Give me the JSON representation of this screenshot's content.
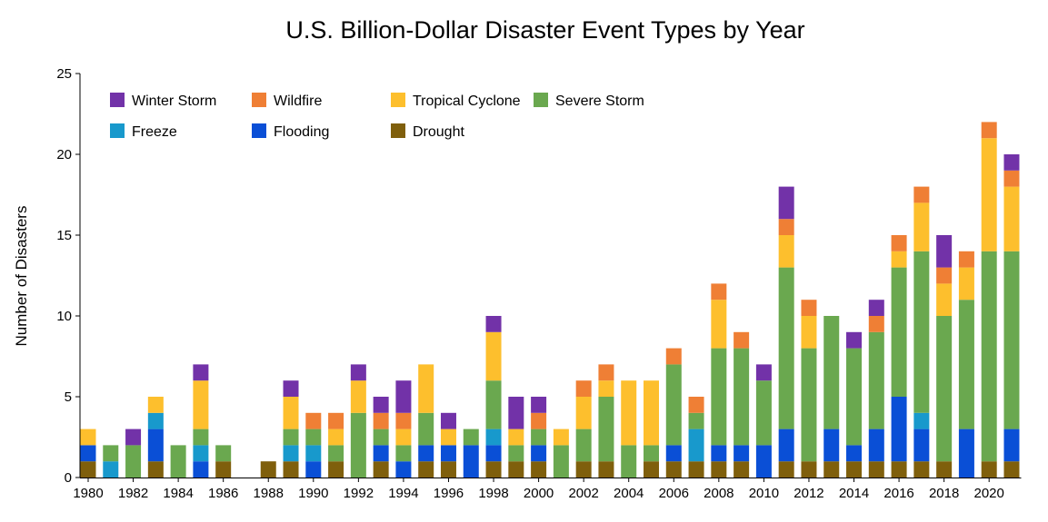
{
  "chart_data": {
    "type": "bar",
    "stacked": true,
    "title": "U.S. Billion-Dollar Disaster Event Types by Year",
    "xlabel": "",
    "ylabel": "Number of Disasters",
    "ylim": [
      0,
      25
    ],
    "yticks": [
      0,
      5,
      10,
      15,
      20,
      25
    ],
    "xtick_labels": [
      "1980",
      "1982",
      "1984",
      "1986",
      "1988",
      "1990",
      "1992",
      "1994",
      "1996",
      "1998",
      "2000",
      "2002",
      "2004",
      "2006",
      "2008",
      "2010",
      "2012",
      "2014",
      "2016",
      "2018",
      "2020"
    ],
    "categories": [
      "1980",
      "1981",
      "1982",
      "1983",
      "1984",
      "1985",
      "1986",
      "1987",
      "1988",
      "1989",
      "1990",
      "1991",
      "1992",
      "1993",
      "1994",
      "1995",
      "1996",
      "1997",
      "1998",
      "1999",
      "2000",
      "2001",
      "2002",
      "2003",
      "2004",
      "2005",
      "2006",
      "2007",
      "2008",
      "2009",
      "2010",
      "2011",
      "2012",
      "2013",
      "2014",
      "2015",
      "2016",
      "2017",
      "2018",
      "2019",
      "2020",
      "2021"
    ],
    "series": [
      {
        "name": "Drought",
        "color": "#7f5f0c",
        "values": [
          1,
          0,
          0,
          1,
          0,
          0,
          1,
          0,
          1,
          1,
          0,
          1,
          0,
          1,
          0,
          1,
          1,
          0,
          1,
          1,
          1,
          0,
          1,
          1,
          0,
          1,
          1,
          1,
          1,
          1,
          0,
          1,
          1,
          1,
          1,
          1,
          1,
          1,
          1,
          0,
          1,
          1
        ]
      },
      {
        "name": "Flooding",
        "color": "#0a4fd6",
        "values": [
          1,
          0,
          0,
          2,
          0,
          1,
          0,
          0,
          0,
          0,
          1,
          0,
          0,
          1,
          1,
          1,
          1,
          2,
          1,
          0,
          1,
          0,
          0,
          0,
          0,
          0,
          1,
          0,
          1,
          1,
          2,
          2,
          0,
          2,
          1,
          2,
          4,
          2,
          0,
          3,
          0,
          2
        ]
      },
      {
        "name": "Freeze",
        "color": "#1899cc",
        "values": [
          0,
          1,
          0,
          1,
          0,
          1,
          0,
          0,
          0,
          1,
          1,
          0,
          0,
          0,
          0,
          0,
          0,
          0,
          1,
          0,
          0,
          0,
          0,
          0,
          0,
          0,
          0,
          2,
          0,
          0,
          0,
          0,
          0,
          0,
          0,
          0,
          0,
          1,
          0,
          0,
          0,
          0
        ]
      },
      {
        "name": "Severe Storm",
        "color": "#6aa84f",
        "values": [
          0,
          1,
          2,
          0,
          2,
          1,
          1,
          0,
          0,
          1,
          1,
          1,
          4,
          1,
          1,
          2,
          0,
          1,
          3,
          1,
          1,
          2,
          2,
          4,
          2,
          1,
          5,
          1,
          6,
          6,
          4,
          10,
          7,
          7,
          6,
          6,
          8,
          10,
          9,
          8,
          13,
          11
        ]
      },
      {
        "name": "Tropical Cyclone",
        "color": "#fdbf2d",
        "values": [
          1,
          0,
          0,
          1,
          0,
          3,
          0,
          0,
          0,
          2,
          0,
          1,
          2,
          0,
          1,
          3,
          1,
          0,
          3,
          1,
          0,
          1,
          2,
          1,
          4,
          4,
          0,
          0,
          3,
          0,
          0,
          2,
          2,
          0,
          0,
          0,
          1,
          3,
          2,
          2,
          7,
          4
        ]
      },
      {
        "name": "Wildfire",
        "color": "#ef7f35",
        "values": [
          0,
          0,
          0,
          0,
          0,
          0,
          0,
          0,
          0,
          0,
          1,
          1,
          0,
          1,
          1,
          0,
          0,
          0,
          0,
          0,
          1,
          0,
          1,
          1,
          0,
          0,
          1,
          1,
          1,
          1,
          0,
          1,
          1,
          0,
          0,
          1,
          1,
          1,
          1,
          1,
          1,
          1
        ]
      },
      {
        "name": "Winter Storm",
        "color": "#7232a8",
        "values": [
          0,
          0,
          1,
          0,
          0,
          1,
          0,
          0,
          0,
          1,
          0,
          0,
          1,
          1,
          2,
          0,
          1,
          0,
          1,
          2,
          1,
          0,
          0,
          0,
          0,
          0,
          0,
          0,
          0,
          0,
          1,
          2,
          0,
          0,
          1,
          1,
          0,
          0,
          2,
          0,
          0,
          1
        ]
      }
    ],
    "legend": {
      "placement": "top-left",
      "entries": [
        {
          "name": "Winter Storm",
          "color": "#7232a8"
        },
        {
          "name": "Wildfire",
          "color": "#ef7f35"
        },
        {
          "name": "Tropical Cyclone",
          "color": "#fdbf2d"
        },
        {
          "name": "Severe Storm",
          "color": "#6aa84f"
        },
        {
          "name": "Freeze",
          "color": "#1899cc"
        },
        {
          "name": "Flooding",
          "color": "#0a4fd6"
        },
        {
          "name": "Drought",
          "color": "#7f5f0c"
        }
      ]
    }
  }
}
